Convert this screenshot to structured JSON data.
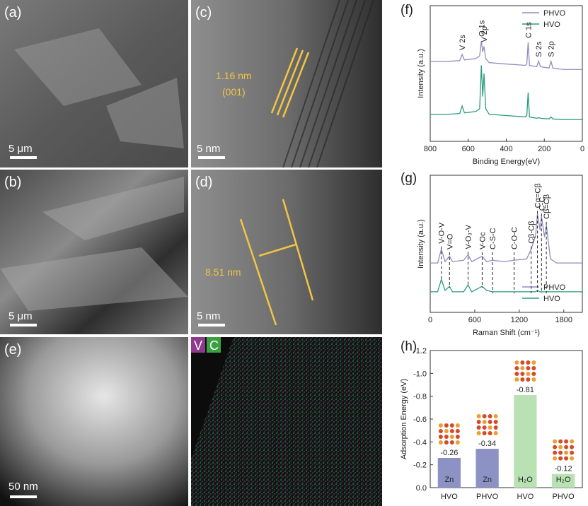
{
  "panels": {
    "a": {
      "label": "(a)",
      "scale_bar": "5 μm"
    },
    "c": {
      "label": "(c)",
      "scale_bar": "5 nm",
      "annotations": [
        "1.16 nm",
        "(001)"
      ]
    },
    "b": {
      "label": "(b)",
      "scale_bar": "5 μm"
    },
    "d": {
      "label": "(d)",
      "scale_bar": "5 nm",
      "annotations": [
        "8.51 nm"
      ]
    },
    "e": {
      "label": "(e)",
      "scale_bar": "50 nm"
    },
    "map": {
      "channels": [
        "V",
        "C"
      ]
    }
  },
  "chart_data": [
    {
      "type": "line",
      "panel_label": "(f)",
      "x_label": "Binding Energy(eV)",
      "y_label": "Intensity (a.u.)",
      "xlim": [
        800,
        0
      ],
      "xticks": [
        800,
        600,
        400,
        200,
        0
      ],
      "ylim": [
        0,
        10
      ],
      "legend": "upper right",
      "x": [
        800,
        700,
        645,
        632,
        620,
        560,
        540,
        531,
        524,
        517,
        508,
        490,
        400,
        300,
        292,
        285,
        278,
        240,
        230,
        220,
        175,
        165,
        155,
        100,
        0
      ],
      "series": [
        {
          "name": "PHVO",
          "color": "#8c8fc2",
          "values": [
            5.9,
            5.9,
            5.95,
            6.4,
            6.0,
            6.1,
            6.3,
            7.4,
            6.6,
            7.0,
            6.1,
            5.8,
            5.7,
            5.6,
            5.7,
            7.3,
            5.6,
            5.5,
            5.9,
            5.5,
            5.4,
            5.9,
            5.4,
            5.3,
            5.3
          ]
        },
        {
          "name": "HVO",
          "color": "#2a9a80",
          "values": [
            2.0,
            2.0,
            2.05,
            2.6,
            2.1,
            2.2,
            2.4,
            5.6,
            3.3,
            5.0,
            2.4,
            2.0,
            1.9,
            1.8,
            1.9,
            3.6,
            1.8,
            1.7,
            1.75,
            1.7,
            1.65,
            1.8,
            1.65,
            1.6,
            1.6
          ]
        }
      ],
      "annotations": [
        {
          "text": "V 2s",
          "x": 632
        },
        {
          "text": "O 1s",
          "x": 531
        },
        {
          "text": "V 2p",
          "x": 517
        },
        {
          "text": "C 1s",
          "x": 285
        },
        {
          "text": "S 2s",
          "x": 230
        },
        {
          "text": "S 2p",
          "x": 165
        }
      ]
    },
    {
      "type": "line",
      "panel_label": "(g)",
      "x_label": "Raman Shift (cm⁻¹)",
      "y_label": "Intensity (a.u.)",
      "xlim": [
        0,
        2050
      ],
      "xticks": [
        0,
        600,
        1200,
        1800
      ],
      "ylim": [
        0,
        10
      ],
      "legend": "lower right",
      "dashed_leaders": true,
      "x": [
        0,
        100,
        150,
        200,
        260,
        300,
        450,
        510,
        560,
        700,
        760,
        840,
        1000,
        1130,
        1300,
        1360,
        1420,
        1445,
        1480,
        1500,
        1540,
        1565,
        1620,
        1700,
        2050
      ],
      "series": [
        {
          "name": "PHVO",
          "color": "#8c8fc2",
          "values": [
            3.6,
            3.6,
            4.6,
            3.7,
            4.1,
            3.7,
            3.8,
            4.2,
            3.7,
            4.1,
            3.7,
            3.8,
            3.7,
            3.8,
            3.9,
            4.6,
            5.6,
            7.2,
            6.0,
            7.0,
            5.5,
            6.4,
            3.9,
            3.6,
            3.6
          ]
        },
        {
          "name": "HVO",
          "color": "#2a9a80",
          "values": [
            1.5,
            1.5,
            2.4,
            1.6,
            1.9,
            1.5,
            1.5,
            2.0,
            1.5,
            1.9,
            1.6,
            1.5,
            1.5,
            1.5,
            1.5,
            1.5,
            1.5,
            1.6,
            1.5,
            1.5,
            1.5,
            1.5,
            1.5,
            1.5,
            1.5
          ]
        }
      ],
      "annotations": [
        {
          "text": "V-O-V",
          "x": 150
        },
        {
          "text": "V=O",
          "x": 260
        },
        {
          "text": "V-O₃-V",
          "x": 510
        },
        {
          "text": "V-Oc",
          "x": 700
        },
        {
          "text": "C-S-C",
          "x": 840
        },
        {
          "text": "C-O-C",
          "x": 1130
        },
        {
          "text": "Cβ-Cβ",
          "x": 1360
        },
        {
          "text": "Cα=Cβ",
          "x": 1445
        },
        {
          "text": "C-C",
          "x": 1500
        },
        {
          "text": "Cβ=Cβ",
          "x": 1565
        }
      ]
    },
    {
      "type": "bar",
      "panel_label": "(h)",
      "y_label": "Adsorption Energy (eV)",
      "categories": [
        "HVO",
        "PHVO",
        "HVO",
        "PHVO"
      ],
      "values": [
        -0.26,
        -0.34,
        -0.81,
        -0.12
      ],
      "bar_labels": [
        "Zn",
        "Zn",
        "H₂O",
        "H₂O"
      ],
      "colors": [
        "#8c93c4",
        "#8c93c4",
        "#b9e2b4",
        "#b9e2b4"
      ],
      "ylim": [
        0,
        -1.2
      ],
      "yticks": [
        {
          "value": 0,
          "label": "0.0"
        },
        -0.2,
        -0.4,
        -0.6,
        -0.8,
        {
          "value": -1,
          "label": "-1.0"
        },
        -1.2
      ]
    }
  ]
}
